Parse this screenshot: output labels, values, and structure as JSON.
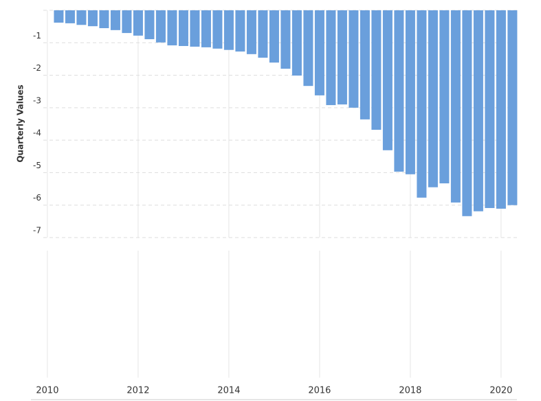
{
  "chart_data": {
    "type": "bar",
    "y_label": "Quarterly Values",
    "color": "#6a9fdc",
    "x": [
      2010.25,
      2010.5,
      2010.75,
      2011,
      2011.25,
      2011.5,
      2011.75,
      2012,
      2012.25,
      2012.5,
      2012.75,
      2013,
      2013.25,
      2013.5,
      2013.75,
      2014,
      2014.25,
      2014.5,
      2014.75,
      2015,
      2015.25,
      2015.5,
      2015.75,
      2016,
      2016.25,
      2016.5,
      2016.75,
      2017,
      2017.25,
      2017.5,
      2017.75,
      2018,
      2018.25,
      2018.5,
      2018.75,
      2019,
      2019.25,
      2019.5,
      2019.75,
      2020,
      2020.25
    ],
    "values": [
      -0.38,
      -0.4,
      -0.45,
      -0.49,
      -0.55,
      -0.61,
      -0.7,
      -0.78,
      -0.89,
      -0.99,
      -1.08,
      -1.1,
      -1.12,
      -1.14,
      -1.18,
      -1.22,
      -1.27,
      -1.35,
      -1.46,
      -1.61,
      -1.8,
      -2.01,
      -2.33,
      -2.62,
      -2.92,
      -2.9,
      -3.0,
      -3.36,
      -3.68,
      -4.31,
      -4.97,
      -5.05,
      -5.77,
      -5.45,
      -5.33,
      -5.92,
      -6.34,
      -6.19,
      -6.09,
      -6.11,
      -6.0
    ],
    "xlim": [
      2009.91,
      2020.35
    ],
    "xticks": [
      2010,
      2012,
      2014,
      2016,
      2018,
      2020
    ],
    "ylim": [
      -7,
      0
    ],
    "yticks": [
      -7,
      -6,
      -5,
      -4,
      -3,
      -2,
      -1
    ],
    "grid": true
  }
}
